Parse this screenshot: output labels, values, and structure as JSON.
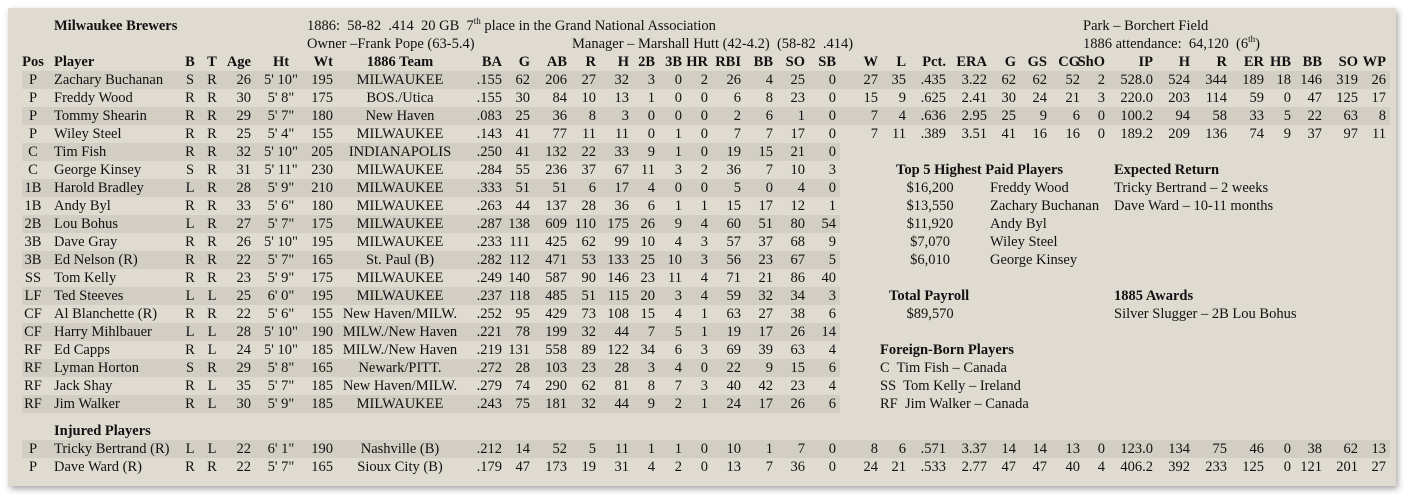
{
  "header": {
    "team_name": "Milwaukee Brewers",
    "record_prefix": "1886:  58-82  .414  20 GB  7",
    "record_sup": "th",
    "record_suffix": " place in the Grand National Association",
    "owner": "Owner –Frank Pope (63-5.4)",
    "manager": "Manager – Marshall Hutt (42-4.2)  (58-82  .414)",
    "park": "Park – Borchert Field",
    "attendance_prefix": "1886 attendance:  64,120  (6",
    "attendance_sup": "th",
    "attendance_suffix": ")"
  },
  "columns": {
    "batting": [
      "Pos",
      "Player",
      "B",
      "T",
      "Age",
      "Ht",
      "Wt",
      "1886 Team",
      "BA",
      "G",
      "AB",
      "R",
      "H",
      "2B",
      "3B",
      "HR",
      "RBI",
      "BB",
      "SO",
      "SB"
    ],
    "pitching": [
      "W",
      "L",
      "Pct.",
      "ERA",
      "G",
      "GS",
      "CG",
      "ShO",
      "IP",
      "H",
      "R",
      "ER",
      "HB",
      "BB",
      "SO",
      "WP"
    ]
  },
  "players": [
    {
      "bat": [
        "P",
        "Zachary Buchanan",
        "S",
        "R",
        "26",
        "5' 10\"",
        "195",
        "MILWAUKEE",
        ".155",
        "62",
        "206",
        "27",
        "32",
        "3",
        "0",
        "2",
        "26",
        "4",
        "25",
        "0"
      ],
      "pit": [
        "27",
        "35",
        ".435",
        "3.22",
        "62",
        "62",
        "52",
        "2",
        "528.0",
        "524",
        "344",
        "189",
        "18",
        "146",
        "319",
        "26"
      ]
    },
    {
      "bat": [
        "P",
        "Freddy Wood",
        "R",
        "R",
        "30",
        "5' 8\"",
        "175",
        "BOS./Utica",
        ".155",
        "30",
        "84",
        "10",
        "13",
        "1",
        "0",
        "0",
        "6",
        "8",
        "23",
        "0"
      ],
      "pit": [
        "15",
        "9",
        ".625",
        "2.41",
        "30",
        "24",
        "21",
        "3",
        "220.0",
        "203",
        "114",
        "59",
        "0",
        "47",
        "125",
        "17"
      ]
    },
    {
      "bat": [
        "P",
        "Tommy Shearin",
        "R",
        "R",
        "29",
        "5' 7\"",
        "180",
        "New Haven",
        ".083",
        "25",
        "36",
        "8",
        "3",
        "0",
        "0",
        "0",
        "2",
        "6",
        "1",
        "0"
      ],
      "pit": [
        "7",
        "4",
        ".636",
        "2.95",
        "25",
        "9",
        "6",
        "0",
        "100.2",
        "94",
        "58",
        "33",
        "5",
        "22",
        "63",
        "8"
      ]
    },
    {
      "bat": [
        "P",
        "Wiley Steel",
        "R",
        "R",
        "25",
        "5' 4\"",
        "155",
        "MILWAUKEE",
        ".143",
        "41",
        "77",
        "11",
        "11",
        "0",
        "1",
        "0",
        "7",
        "7",
        "17",
        "0"
      ],
      "pit": [
        "7",
        "11",
        ".389",
        "3.51",
        "41",
        "16",
        "16",
        "0",
        "189.2",
        "209",
        "136",
        "74",
        "9",
        "37",
        "97",
        "11"
      ]
    },
    {
      "bat": [
        "C",
        "Tim Fish",
        "R",
        "R",
        "32",
        "5' 10\"",
        "205",
        "INDIANAPOLIS",
        ".250",
        "41",
        "132",
        "22",
        "33",
        "9",
        "1",
        "0",
        "19",
        "15",
        "21",
        "0"
      ]
    },
    {
      "bat": [
        "C",
        "George Kinsey",
        "S",
        "R",
        "31",
        "5' 11\"",
        "230",
        "MILWAUKEE",
        ".284",
        "55",
        "236",
        "37",
        "67",
        "11",
        "3",
        "2",
        "36",
        "7",
        "10",
        "3"
      ]
    },
    {
      "bat": [
        "1B",
        "Harold Bradley",
        "L",
        "R",
        "28",
        "5' 9\"",
        "210",
        "MILWAUKEE",
        ".333",
        "51",
        "51",
        "6",
        "17",
        "4",
        "0",
        "0",
        "5",
        "0",
        "4",
        "0"
      ]
    },
    {
      "bat": [
        "1B",
        "Andy Byl",
        "R",
        "R",
        "33",
        "5' 6\"",
        "180",
        "MILWAUKEE",
        ".263",
        "44",
        "137",
        "28",
        "36",
        "6",
        "1",
        "1",
        "15",
        "17",
        "12",
        "1"
      ]
    },
    {
      "bat": [
        "2B",
        "Lou Bohus",
        "L",
        "R",
        "27",
        "5' 7\"",
        "175",
        "MILWAUKEE",
        ".287",
        "138",
        "609",
        "110",
        "175",
        "26",
        "9",
        "4",
        "60",
        "51",
        "80",
        "54"
      ]
    },
    {
      "bat": [
        "3B",
        "Dave Gray",
        "R",
        "R",
        "26",
        "5' 10\"",
        "195",
        "MILWAUKEE",
        ".233",
        "111",
        "425",
        "62",
        "99",
        "10",
        "4",
        "3",
        "57",
        "37",
        "68",
        "9"
      ]
    },
    {
      "bat": [
        "3B",
        "Ed Nelson (R)",
        "R",
        "R",
        "22",
        "5' 7\"",
        "165",
        "St. Paul (B)",
        ".282",
        "112",
        "471",
        "53",
        "133",
        "25",
        "10",
        "3",
        "56",
        "23",
        "67",
        "5"
      ]
    },
    {
      "bat": [
        "SS",
        "Tom Kelly",
        "R",
        "R",
        "23",
        "5' 9\"",
        "175",
        "MILWAUKEE",
        ".249",
        "140",
        "587",
        "90",
        "146",
        "23",
        "11",
        "4",
        "71",
        "21",
        "86",
        "40"
      ]
    },
    {
      "bat": [
        "LF",
        "Ted Steeves",
        "L",
        "L",
        "25",
        "6' 0\"",
        "195",
        "MILWAUKEE",
        ".237",
        "118",
        "485",
        "51",
        "115",
        "20",
        "3",
        "4",
        "59",
        "32",
        "34",
        "3"
      ]
    },
    {
      "bat": [
        "CF",
        "Al Blanchette (R)",
        "R",
        "R",
        "22",
        "5' 6\"",
        "155",
        "New Haven/MILW.",
        ".252",
        "95",
        "429",
        "73",
        "108",
        "15",
        "4",
        "1",
        "63",
        "27",
        "38",
        "6"
      ]
    },
    {
      "bat": [
        "CF",
        "Harry Mihlbauer",
        "L",
        "L",
        "28",
        "5' 10\"",
        "190",
        "MILW./New Haven",
        ".221",
        "78",
        "199",
        "32",
        "44",
        "7",
        "5",
        "1",
        "19",
        "17",
        "26",
        "14"
      ]
    },
    {
      "bat": [
        "RF",
        "Ed Capps",
        "R",
        "L",
        "24",
        "5' 10\"",
        "185",
        "MILW./New Haven",
        ".219",
        "131",
        "558",
        "89",
        "122",
        "34",
        "6",
        "3",
        "69",
        "39",
        "63",
        "4"
      ]
    },
    {
      "bat": [
        "RF",
        "Lyman Horton",
        "S",
        "R",
        "29",
        "5' 8\"",
        "165",
        "Newark/PITT.",
        ".272",
        "28",
        "103",
        "23",
        "28",
        "3",
        "4",
        "0",
        "22",
        "9",
        "15",
        "6"
      ]
    },
    {
      "bat": [
        "RF",
        "Jack Shay",
        "R",
        "L",
        "35",
        "5' 7\"",
        "185",
        "New Haven/MILW.",
        ".279",
        "74",
        "290",
        "62",
        "81",
        "8",
        "7",
        "3",
        "40",
        "42",
        "23",
        "4"
      ]
    },
    {
      "bat": [
        "RF",
        "Jim Walker",
        "R",
        "L",
        "30",
        "5' 9\"",
        "185",
        "MILWAUKEE",
        ".243",
        "75",
        "181",
        "32",
        "44",
        "9",
        "2",
        "1",
        "24",
        "17",
        "26",
        "6"
      ]
    }
  ],
  "injured": {
    "title": "Injured Players",
    "players": [
      {
        "bat": [
          "P",
          "Tricky Bertrand (R)",
          "L",
          "L",
          "22",
          "6' 1\"",
          "190",
          "Nashville (B)",
          ".212",
          "14",
          "52",
          "5",
          "11",
          "1",
          "1",
          "0",
          "10",
          "1",
          "7",
          "0"
        ],
        "pit": [
          "8",
          "6",
          ".571",
          "3.37",
          "14",
          "14",
          "13",
          "0",
          "123.0",
          "134",
          "75",
          "46",
          "0",
          "38",
          "62",
          "13"
        ]
      },
      {
        "bat": [
          "P",
          "Dave Ward (R)",
          "R",
          "R",
          "22",
          "5' 7\"",
          "165",
          "Sioux City (B)",
          ".179",
          "47",
          "173",
          "19",
          "31",
          "4",
          "2",
          "0",
          "13",
          "7",
          "36",
          "0"
        ],
        "pit": [
          "24",
          "21",
          ".533",
          "2.77",
          "47",
          "47",
          "40",
          "4",
          "406.2",
          "392",
          "233",
          "125",
          "0",
          "121",
          "201",
          "27"
        ]
      }
    ]
  },
  "top_paid": {
    "title": "Top 5 Highest Paid Players",
    "items": [
      {
        "salary": "$16,200",
        "name": "Freddy Wood"
      },
      {
        "salary": "$13,550",
        "name": "Zachary Buchanan"
      },
      {
        "salary": "$11,920",
        "name": "Andy Byl"
      },
      {
        "salary": "$7,070",
        "name": "Wiley Steel"
      },
      {
        "salary": "$6,010",
        "name": "George Kinsey"
      }
    ]
  },
  "expected_return": {
    "title": "Expected Return",
    "items": [
      "Tricky Bertrand – 2 weeks",
      "Dave Ward – 10-11 months"
    ]
  },
  "payroll": {
    "title": "Total Payroll",
    "value": "$89,570"
  },
  "awards": {
    "title": "1885 Awards",
    "items": [
      "Silver Slugger – 2B Lou Bohus"
    ]
  },
  "foreign_born": {
    "title": "Foreign-Born Players",
    "items": [
      "C  Tim Fish – Canada",
      "SS  Tom Kelly – Ireland",
      "RF  Jim Walker – Canada"
    ]
  }
}
